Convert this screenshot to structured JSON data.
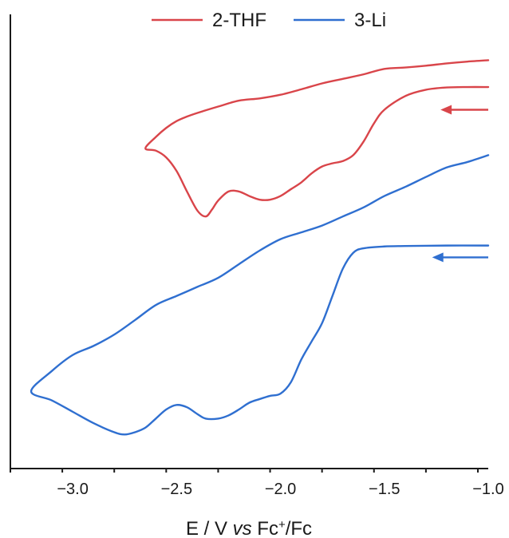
{
  "chart_data": {
    "type": "line",
    "title": "",
    "xlabel": {
      "prefix": "E / V ",
      "italic": "vs",
      "mid": " Fc",
      "superscript": "+",
      "suffix": "/Fc"
    },
    "ylabel": "",
    "xlim": [
      -3.3,
      -1.0
    ],
    "ylim": [
      0,
      1
    ],
    "y_ticks_shown": false,
    "x_ticks": [
      {
        "value": -3.0,
        "label": "−3.0"
      },
      {
        "value": -2.5,
        "label": "−2.5"
      },
      {
        "value": -2.0,
        "label": "−2.0"
      },
      {
        "value": -1.5,
        "label": "−1.5"
      },
      {
        "value": -1.0,
        "label": "−1.0"
      }
    ],
    "grid": false,
    "legend_position": "top-center",
    "series": [
      {
        "name": "2-THF",
        "color": "#d9454a",
        "scan_direction": "cathodic",
        "x": [
          -1.0,
          -1.1,
          -1.2,
          -1.3,
          -1.4,
          -1.5,
          -1.55,
          -1.6,
          -1.65,
          -1.7,
          -1.75,
          -1.8,
          -1.85,
          -1.9,
          -1.95,
          -2.0,
          -2.05,
          -2.1,
          -2.15,
          -2.2,
          -2.25,
          -2.3,
          -2.33,
          -2.36,
          -2.4,
          -2.45,
          -2.5,
          -2.55,
          -2.6,
          -2.65,
          -2.6,
          -2.55,
          -2.5,
          -2.45,
          -2.4,
          -2.3,
          -2.2,
          -2.1,
          -2.0,
          -1.9,
          -1.8,
          -1.7,
          -1.6,
          -1.5,
          -1.4,
          -1.3,
          -1.2,
          -1.1,
          -1.0
        ],
        "y": [
          0.84,
          0.84,
          0.839,
          0.834,
          0.82,
          0.79,
          0.76,
          0.72,
          0.69,
          0.677,
          0.672,
          0.665,
          0.65,
          0.63,
          0.615,
          0.6,
          0.592,
          0.592,
          0.6,
          0.61,
          0.61,
          0.59,
          0.57,
          0.555,
          0.568,
          0.61,
          0.655,
          0.685,
          0.7,
          0.705,
          0.73,
          0.75,
          0.765,
          0.775,
          0.783,
          0.797,
          0.81,
          0.815,
          0.823,
          0.835,
          0.848,
          0.858,
          0.868,
          0.88,
          0.883,
          0.887,
          0.892,
          0.896,
          0.899
        ]
      },
      {
        "name": "3-Li",
        "color": "#2f6fd0",
        "scan_direction": "cathodic",
        "x": [
          -1.0,
          -1.2,
          -1.4,
          -1.5,
          -1.6,
          -1.65,
          -1.7,
          -1.75,
          -1.8,
          -1.85,
          -1.9,
          -1.95,
          -2.0,
          -2.05,
          -2.1,
          -2.15,
          -2.2,
          -2.25,
          -2.3,
          -2.36,
          -2.4,
          -2.45,
          -2.5,
          -2.55,
          -2.6,
          -2.65,
          -2.7,
          -2.75,
          -2.8,
          -2.9,
          -3.0,
          -3.1,
          -3.2,
          -3.1,
          -3.0,
          -2.9,
          -2.8,
          -2.7,
          -2.6,
          -2.5,
          -2.4,
          -2.3,
          -2.2,
          -2.1,
          -2.0,
          -1.9,
          -1.8,
          -1.7,
          -1.6,
          -1.5,
          -1.4,
          -1.3,
          -1.2,
          -1.1,
          -1.0
        ],
        "y": [
          0.491,
          0.491,
          0.49,
          0.489,
          0.485,
          0.475,
          0.44,
          0.38,
          0.32,
          0.28,
          0.24,
          0.19,
          0.165,
          0.16,
          0.153,
          0.145,
          0.13,
          0.117,
          0.11,
          0.11,
          0.12,
          0.135,
          0.14,
          0.13,
          0.11,
          0.09,
          0.08,
          0.075,
          0.08,
          0.1,
          0.125,
          0.15,
          0.17,
          0.215,
          0.25,
          0.27,
          0.295,
          0.327,
          0.36,
          0.38,
          0.4,
          0.42,
          0.45,
          0.48,
          0.505,
          0.52,
          0.535,
          0.555,
          0.575,
          0.6,
          0.62,
          0.642,
          0.663,
          0.675,
          0.69
        ]
      }
    ],
    "annotations": [
      {
        "type": "arrow",
        "series": "2-THF",
        "direction": "left",
        "x_from": -1.0,
        "x_to": -1.23,
        "y": 0.79
      },
      {
        "type": "arrow",
        "series": "3-Li",
        "direction": "left",
        "x_from": -1.0,
        "x_to": -1.27,
        "y": 0.465
      }
    ]
  }
}
